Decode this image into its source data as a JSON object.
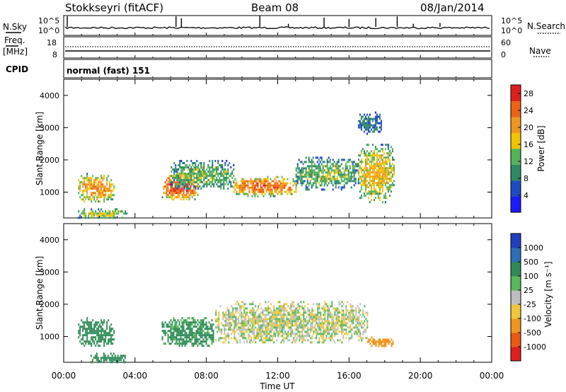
{
  "header": {
    "station": "Stokkseyri (fitACF)",
    "beam": "Beam 08",
    "date": "08/Jan/2014"
  },
  "nsky_panel": {
    "left_label": "N.Sky",
    "right_label": "N.Search",
    "ticks_left": [
      "10^5",
      "10^0"
    ],
    "ticks_right": [
      "10^5",
      "10^0"
    ]
  },
  "freq_panel": {
    "label_top": "Freq.",
    "label_unit": "[MHz]",
    "right_label": "Nave",
    "ticks_left": [
      "18",
      "8"
    ],
    "ticks_right": [
      "60",
      "0"
    ]
  },
  "cpid": {
    "label": "CPID",
    "value": "normal (fast) 151"
  },
  "colors": {
    "power_scale": [
      "#1a1aff",
      "#1e4cc0",
      "#2d8a63",
      "#55b25a",
      "#f2c300",
      "#f0961e",
      "#ea6414",
      "#e01e1e"
    ],
    "velocity_scale": [
      "#1e3fbe",
      "#2d6fb8",
      "#2e8b57",
      "#58b85a",
      "#bebebe",
      "#f0c63c",
      "#f0961e",
      "#ea5a14",
      "#e01e1e"
    ]
  },
  "chart_data": [
    {
      "type": "heatmap",
      "name": "power",
      "xlabel": "",
      "ylabel": "Slant Range [km]",
      "x_ticks": [],
      "y_ticks": [
        "1000",
        "2000",
        "3000",
        "4000"
      ],
      "ylim": [
        200,
        4500
      ],
      "xlim_hours": [
        0,
        24
      ],
      "colorbar": {
        "label": "Power [dB]",
        "ticks": [
          "4",
          "8",
          "12",
          "16",
          "20",
          "24",
          "28"
        ],
        "range": [
          0,
          30
        ]
      },
      "echo_regions": [
        {
          "t": [
            0.8,
            2.8
          ],
          "range": [
            700,
            1600
          ],
          "level": 16
        },
        {
          "t": [
            0.8,
            3.5
          ],
          "range": [
            200,
            500
          ],
          "level": 12
        },
        {
          "t": [
            5.5,
            7.5
          ],
          "range": [
            800,
            1600
          ],
          "level": 20
        },
        {
          "t": [
            6.0,
            9.5
          ],
          "range": [
            1100,
            2000
          ],
          "level": 10
        },
        {
          "t": [
            9.5,
            13.0
          ],
          "range": [
            900,
            1500
          ],
          "level": 18
        },
        {
          "t": [
            13.0,
            16.5
          ],
          "range": [
            1100,
            2100
          ],
          "level": 10
        },
        {
          "t": [
            16.5,
            18.5
          ],
          "range": [
            700,
            2500
          ],
          "level": 14
        },
        {
          "t": [
            16.5,
            17.8
          ],
          "range": [
            2800,
            3500
          ],
          "level": 6
        }
      ]
    },
    {
      "type": "heatmap",
      "name": "velocity",
      "xlabel": "Time UT",
      "ylabel": "Slant Range [km]",
      "x_ticks": [
        "00:00",
        "04:00",
        "08:00",
        "12:00",
        "16:00",
        "20:00",
        "00:00"
      ],
      "y_ticks": [
        "1000",
        "2000",
        "3000",
        "4000"
      ],
      "ylim": [
        200,
        4500
      ],
      "xlim_hours": [
        0,
        24
      ],
      "colorbar": {
        "label": "Velocity [m s⁻¹]",
        "ticks": [
          "1000",
          "500",
          "100",
          "25",
          "-25",
          "-100",
          "-500",
          "-1000"
        ]
      },
      "echo_regions": [
        {
          "t": [
            0.8,
            2.8
          ],
          "range": [
            700,
            1600
          ],
          "velocity": 300
        },
        {
          "t": [
            1.5,
            3.5
          ],
          "range": [
            200,
            500
          ],
          "velocity": 200
        },
        {
          "t": [
            5.5,
            8.5
          ],
          "range": [
            700,
            1600
          ],
          "velocity": 150
        },
        {
          "t": [
            8.5,
            17.0
          ],
          "range": [
            800,
            2100
          ],
          "velocity": 0
        },
        {
          "t": [
            17.0,
            18.5
          ],
          "range": [
            700,
            1000
          ],
          "velocity": -400
        }
      ]
    }
  ]
}
